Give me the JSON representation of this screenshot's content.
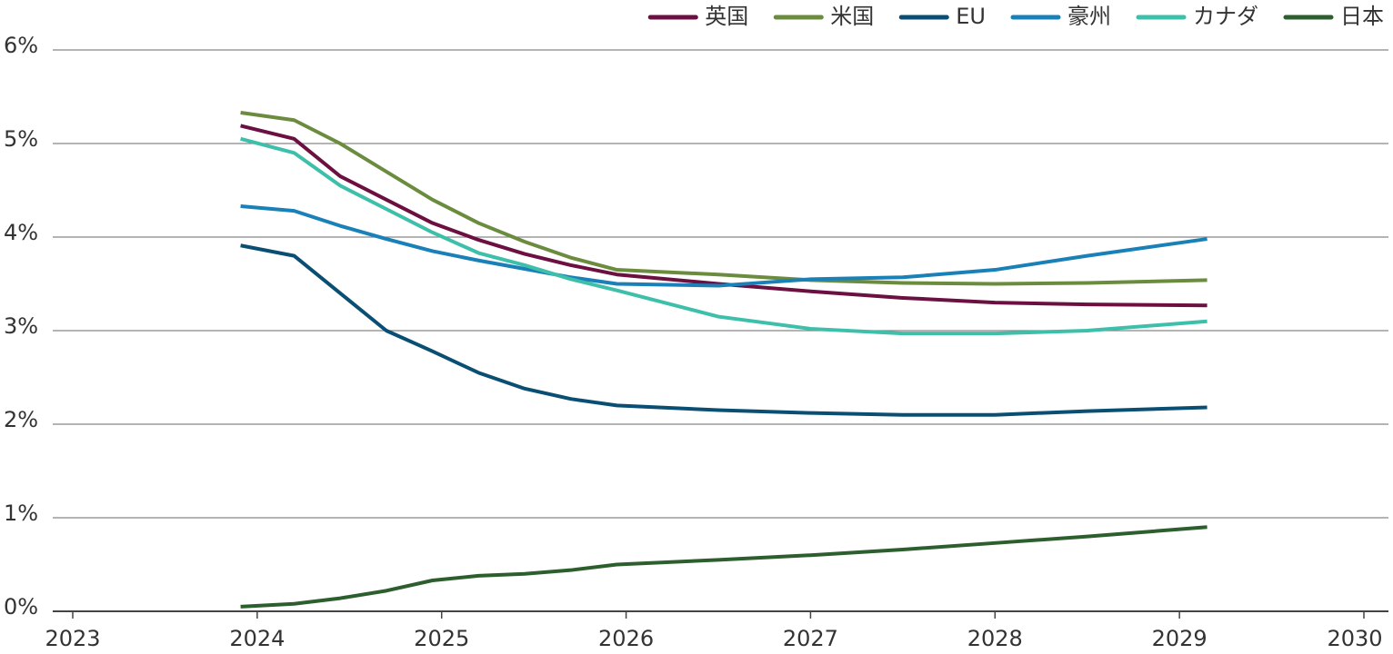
{
  "chart_data": {
    "type": "line",
    "x": [
      2023.91,
      2024.2,
      2024.45,
      2024.7,
      2024.95,
      2025.2,
      2025.45,
      2025.7,
      2025.95,
      2026.5,
      2027,
      2027.5,
      2028,
      2028.5,
      2029.15
    ],
    "series": [
      {
        "name": "英国",
        "color": "#6b1040",
        "values": [
          5.19,
          5.05,
          4.65,
          4.4,
          4.15,
          3.97,
          3.82,
          3.7,
          3.6,
          3.5,
          3.42,
          3.35,
          3.3,
          3.28,
          3.27
        ]
      },
      {
        "name": "米国",
        "color": "#6b8c3e",
        "values": [
          5.33,
          5.25,
          5.0,
          4.7,
          4.4,
          4.15,
          3.95,
          3.78,
          3.65,
          3.6,
          3.54,
          3.51,
          3.5,
          3.51,
          3.54
        ]
      },
      {
        "name": "EU",
        "color": "#0a4f73",
        "values": [
          3.91,
          3.8,
          3.4,
          3.0,
          2.78,
          2.55,
          2.38,
          2.27,
          2.2,
          2.15,
          2.12,
          2.1,
          2.1,
          2.14,
          2.18
        ]
      },
      {
        "name": "豪州",
        "color": "#1a80b8",
        "values": [
          4.33,
          4.28,
          4.12,
          3.98,
          3.85,
          3.75,
          3.66,
          3.57,
          3.5,
          3.48,
          3.55,
          3.57,
          3.65,
          3.8,
          3.98
        ]
      },
      {
        "name": "カナダ",
        "color": "#3dbfaa",
        "values": [
          5.05,
          4.9,
          4.55,
          4.3,
          4.05,
          3.83,
          3.7,
          3.55,
          3.43,
          3.15,
          3.02,
          2.97,
          2.97,
          3.0,
          3.1
        ]
      },
      {
        "name": "日本",
        "color": "#2d5e2d",
        "values": [
          0.05,
          0.08,
          0.14,
          0.22,
          0.33,
          0.38,
          0.4,
          0.44,
          0.5,
          0.55,
          0.6,
          0.66,
          0.73,
          0.8,
          0.9
        ]
      }
    ],
    "xlim": [
      2023,
      2030
    ],
    "xticks": [
      2023,
      2024,
      2025,
      2026,
      2027,
      2028,
      2029,
      2030
    ],
    "ylim": [
      0,
      6
    ],
    "yticks": [
      {
        "value": 0,
        "label": "0%"
      },
      {
        "value": 1,
        "label": "1%"
      },
      {
        "value": 2,
        "label": "2%"
      },
      {
        "value": 3,
        "label": "3%"
      },
      {
        "value": 4,
        "label": "4%"
      },
      {
        "value": 5,
        "label": "5%"
      },
      {
        "value": 6,
        "label": "6%"
      }
    ],
    "grid": true,
    "legend": "top-right"
  }
}
